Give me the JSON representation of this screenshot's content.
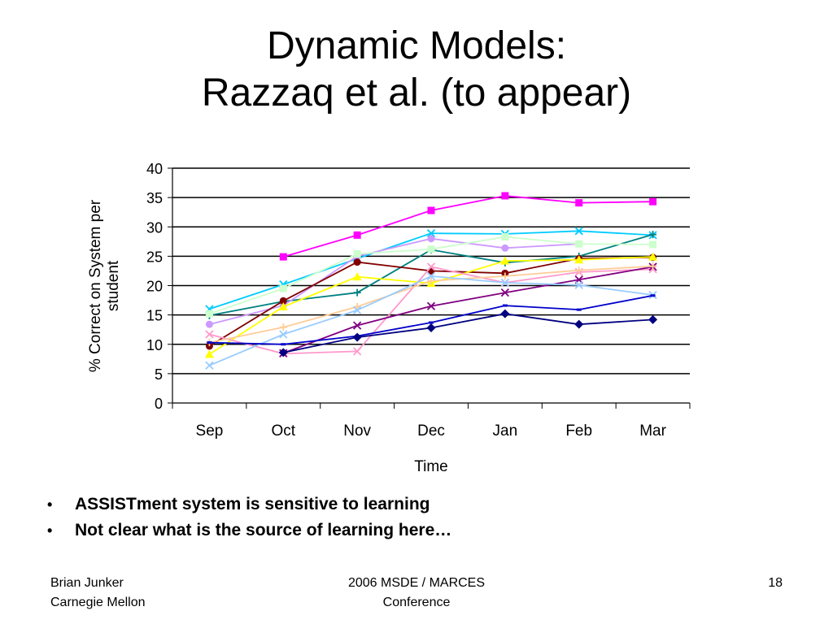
{
  "slide": {
    "title_line1": "Dynamic Models:",
    "title_line2": "Razzaq et al. (to appear)",
    "bullets": [
      "ASSISTment system is sensitive to learning",
      "Not clear what is the source of learning here…"
    ],
    "bullet_glyph": "•",
    "footer": {
      "left_line1": "Brian Junker",
      "left_line2": "Carnegie Mellon",
      "center_line1": "2006 MSDE / MARCES",
      "center_line2": "Conference",
      "page_number": "18"
    }
  },
  "chart_data": {
    "type": "line",
    "xlabel": "Time",
    "ylabel_lines": [
      "% Correct on System per",
      "student"
    ],
    "categories": [
      "Sep",
      "Oct",
      "Nov",
      "Dec",
      "Jan",
      "Feb",
      "Mar"
    ],
    "yticks": [
      "0",
      "5",
      "10",
      "15",
      "20",
      "25",
      "30",
      "35",
      "40"
    ],
    "ylim": [
      0,
      40
    ],
    "grid": "horizontal",
    "series": [
      {
        "color": "#ff00ff",
        "marker": "square",
        "values": [
          null,
          24.9,
          28.6,
          32.8,
          35.3,
          34.1,
          34.3
        ]
      },
      {
        "color": "#00ccff",
        "marker": "x",
        "values": [
          16.0,
          20.2,
          24.6,
          28.9,
          28.8,
          29.3,
          28.6
        ]
      },
      {
        "color": "#008080",
        "marker": "plus",
        "values": [
          14.9,
          17.3,
          18.8,
          26.1,
          23.9,
          25.0,
          28.7
        ]
      },
      {
        "color": "#cc99ff",
        "marker": "circle",
        "values": [
          13.4,
          16.6,
          25.0,
          28.0,
          26.4,
          27.1,
          null
        ]
      },
      {
        "color": "#ccffcc",
        "marker": "square",
        "values": [
          15.2,
          19.5,
          25.4,
          26.2,
          28.3,
          27.1,
          27.0
        ]
      },
      {
        "color": "#800000",
        "marker": "circle",
        "values": [
          9.7,
          17.4,
          24.0,
          22.5,
          22.1,
          24.6,
          24.8
        ]
      },
      {
        "color": "#ffff00",
        "marker": "triangle",
        "values": [
          8.3,
          16.4,
          21.5,
          20.4,
          24.2,
          24.4,
          24.9
        ]
      },
      {
        "color": "#ff99cc",
        "marker": "x",
        "values": [
          11.7,
          8.4,
          8.8,
          23.2,
          20.5,
          22.3,
          22.8
        ]
      },
      {
        "color": "#800080",
        "marker": "x",
        "values": [
          null,
          8.5,
          13.2,
          16.5,
          18.8,
          21.0,
          23.2
        ]
      },
      {
        "color": "#ffcc99",
        "marker": "plus",
        "values": [
          10.3,
          12.9,
          16.4,
          20.8,
          21.6,
          22.6,
          23.3
        ]
      },
      {
        "color": "#99ccff",
        "marker": "x",
        "values": [
          6.4,
          11.7,
          15.8,
          21.6,
          20.5,
          20.1,
          18.4
        ]
      },
      {
        "color": "#0000cc",
        "marker": "dash",
        "values": [
          10.3,
          10.0,
          11.4,
          13.7,
          16.6,
          15.9,
          18.3
        ]
      },
      {
        "color": "#000080",
        "marker": "diamond",
        "values": [
          null,
          8.6,
          11.2,
          12.8,
          15.2,
          13.4,
          14.2
        ]
      }
    ]
  }
}
